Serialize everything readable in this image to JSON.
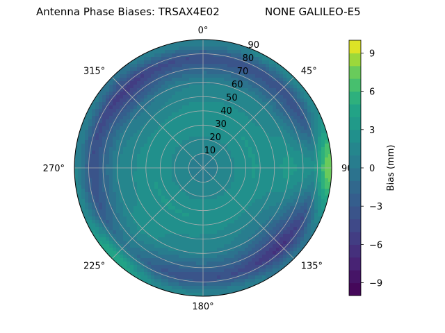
{
  "chart_data": {
    "type": "heatmap",
    "projection": "polar",
    "title_left": "Antenna Phase Biases: TRSAX4E02",
    "title_right": "NONE GALILEO-E5",
    "angle_direction": "clockwise",
    "zero_location": "top",
    "angle_ticks": [
      "0°",
      "45°",
      "90°",
      "135°",
      "180°",
      "225°",
      "270°",
      "315°"
    ],
    "radial_ticks": [
      "10",
      "20",
      "30",
      "40",
      "50",
      "60",
      "70",
      "80",
      "90"
    ],
    "rlim": [
      0,
      90
    ],
    "grid": true,
    "colorbar": {
      "label": "Bias (mm)",
      "range": [
        -10,
        10
      ],
      "ticks": [
        "-9",
        "-6",
        "-3",
        "0",
        "3",
        "6",
        "9"
      ],
      "colormap": "viridis",
      "levels": 20
    },
    "approximate_bias_by_zenith_band": [
      {
        "zenith": [
          0,
          20
        ],
        "bias": 1
      },
      {
        "zenith": [
          20,
          50
        ],
        "bias": 3
      },
      {
        "zenith": [
          50,
          70
        ],
        "bias": 1
      },
      {
        "zenith": [
          70,
          85
        ],
        "bias": -4
      },
      {
        "zenith": [
          85,
          90
        ],
        "bias": 1
      }
    ],
    "notable_features": [
      {
        "azimuth": 90,
        "zenith": 88,
        "bias": 8
      },
      {
        "azimuth": 135,
        "zenith": 78,
        "bias": -6
      },
      {
        "azimuth": 225,
        "zenith": 88,
        "bias": 5
      },
      {
        "azimuth": 315,
        "zenith": 75,
        "bias": -5
      }
    ]
  }
}
